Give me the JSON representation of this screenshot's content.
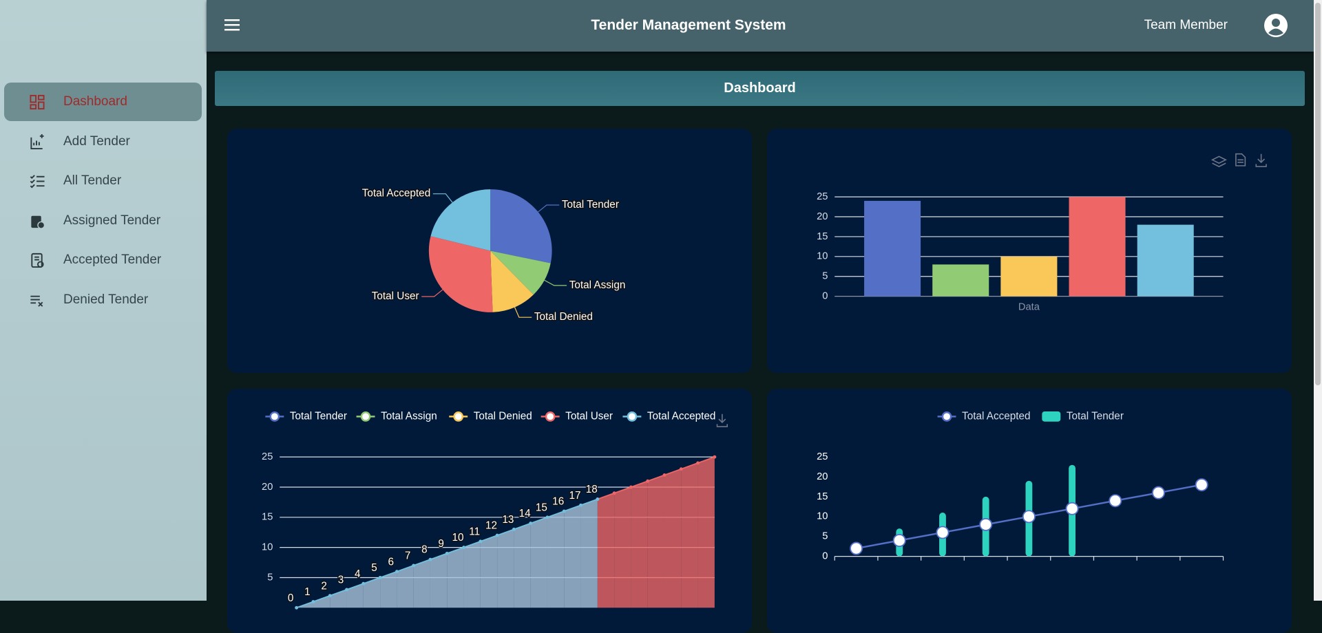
{
  "sidebar": {
    "items": [
      {
        "label": "Dashboard",
        "active": true
      },
      {
        "label": "Add Tender",
        "active": false
      },
      {
        "label": "All Tender",
        "active": false
      },
      {
        "label": "Assigned Tender",
        "active": false
      },
      {
        "label": "Accepted Tender",
        "active": false
      },
      {
        "label": "Denied Tender",
        "active": false
      }
    ]
  },
  "header": {
    "title": "Tender Management System",
    "user": "Team Member"
  },
  "page_title": "Dashboard",
  "chart_data": [
    {
      "type": "pie",
      "categories": [
        "Total Tender",
        "Total Assign",
        "Total Denied",
        "Total User",
        "Total Accepted"
      ],
      "values": [
        24,
        8,
        10,
        25,
        18
      ],
      "colors": [
        "#5470c6",
        "#91cc75",
        "#fac858",
        "#ee6666",
        "#73c0de"
      ]
    },
    {
      "type": "bar",
      "categories": [
        "Data"
      ],
      "series": [
        {
          "color": "#5470c6",
          "values": [
            24
          ]
        },
        {
          "color": "#91cc75",
          "values": [
            8
          ]
        },
        {
          "color": "#fac858",
          "values": [
            10
          ]
        },
        {
          "color": "#ee6666",
          "values": [
            25
          ]
        },
        {
          "color": "#73c0de",
          "values": [
            18
          ]
        }
      ],
      "ylim": [
        0,
        25
      ],
      "yticks": [
        0,
        5,
        10,
        15,
        20,
        25
      ],
      "grid": true
    },
    {
      "type": "line",
      "legend": [
        {
          "name": "Total Tender",
          "color": "#5470c6"
        },
        {
          "name": "Total Assign",
          "color": "#91cc75"
        },
        {
          "name": "Total Denied",
          "color": "#fac858"
        },
        {
          "name": "Total User",
          "color": "#ee6666"
        },
        {
          "name": "Total Accepted",
          "color": "#73c0de"
        }
      ],
      "series": [
        {
          "color": "#73c0de",
          "alt_color": "#ee6666",
          "values": [
            0,
            1,
            2,
            3,
            4,
            5,
            6,
            7,
            8,
            9,
            10,
            11,
            12,
            13,
            14,
            15,
            16,
            17,
            18,
            19,
            20,
            21,
            22,
            23,
            24,
            25
          ],
          "value_labels": [
            "0",
            "1",
            "2",
            "3",
            "4",
            "5",
            "6",
            "7",
            "8",
            "9",
            "10",
            "11",
            "12",
            "13",
            "14",
            "15",
            "16",
            "17",
            "18",
            null,
            null,
            null,
            null,
            null,
            null,
            null
          ]
        }
      ],
      "ylim": [
        0,
        25
      ],
      "yticks": [
        5,
        10,
        15,
        20,
        25
      ],
      "grid": true
    },
    {
      "type": "mixed",
      "categories": [
        null,
        null,
        null,
        null,
        null,
        null,
        null,
        null,
        null
      ],
      "series": [
        {
          "name": "Total Accepted",
          "type": "line",
          "color": "#5470c6",
          "values": [
            2,
            4,
            6,
            8,
            10,
            12,
            14,
            16,
            18
          ]
        },
        {
          "name": "Total Tender",
          "type": "bar",
          "color": "#2ed3c0",
          "values": [
            null,
            7,
            11,
            15,
            19,
            23,
            null,
            null,
            null
          ]
        }
      ],
      "ylim": [
        0,
        25
      ],
      "yticks": [
        0,
        5,
        10,
        15,
        20,
        25
      ],
      "grid": false
    }
  ]
}
